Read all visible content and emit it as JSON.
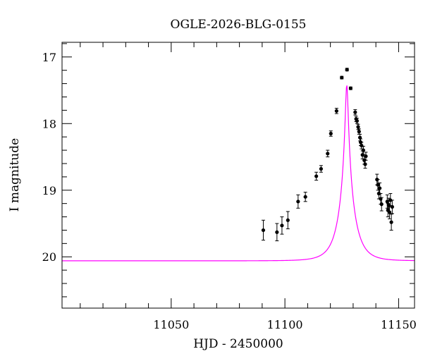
{
  "chart_data": {
    "type": "scatter",
    "title": "OGLE-2026-BLG-0155",
    "xlabel": "HJD - 2450000",
    "ylabel": "I magnitude",
    "xlim": [
      11002,
      11157
    ],
    "ylim": [
      20.77,
      16.78
    ],
    "y_inverted": true,
    "x_ticks": [
      11050,
      11100,
      11150
    ],
    "y_ticks": [
      17,
      18,
      19,
      20
    ],
    "x_minor_step": 10,
    "y_minor_step": 0.2,
    "grid": false,
    "model_color": "#ff00ff",
    "point_color": "#000000",
    "model": {
      "t0": 11127.2,
      "tE": 6.3,
      "u0": 0.0877,
      "baseline_mag": 20.06,
      "name": ""
    },
    "points": [
      {
        "x": 11090.5,
        "y": 19.6,
        "err": 0.15
      },
      {
        "x": 11096.5,
        "y": 19.63,
        "err": 0.13
      },
      {
        "x": 11098.7,
        "y": 19.53,
        "err": 0.13
      },
      {
        "x": 11101.3,
        "y": 19.45,
        "err": 0.13
      },
      {
        "x": 11105.8,
        "y": 19.17,
        "err": 0.1
      },
      {
        "x": 11109.0,
        "y": 19.1,
        "err": 0.07
      },
      {
        "x": 11113.8,
        "y": 18.79,
        "err": 0.06
      },
      {
        "x": 11115.9,
        "y": 18.68,
        "err": 0.05
      },
      {
        "x": 11118.8,
        "y": 18.45,
        "err": 0.05
      },
      {
        "x": 11120.2,
        "y": 18.15,
        "err": 0.04
      },
      {
        "x": 11122.7,
        "y": 17.81,
        "err": 0.04
      },
      {
        "x": 11125.0,
        "y": 17.31,
        "err": 0.02
      },
      {
        "x": 11127.3,
        "y": 17.19,
        "err": 0.02
      },
      {
        "x": 11128.9,
        "y": 17.47,
        "err": 0.02
      },
      {
        "x": 11130.9,
        "y": 17.83,
        "err": 0.04
      },
      {
        "x": 11131.3,
        "y": 17.93,
        "err": 0.04
      },
      {
        "x": 11131.7,
        "y": 17.96,
        "err": 0.04
      },
      {
        "x": 11132.2,
        "y": 18.05,
        "err": 0.04
      },
      {
        "x": 11132.6,
        "y": 18.12,
        "err": 0.04
      },
      {
        "x": 11133.0,
        "y": 18.21,
        "err": 0.05
      },
      {
        "x": 11133.3,
        "y": 18.28,
        "err": 0.05
      },
      {
        "x": 11133.7,
        "y": 18.33,
        "err": 0.05
      },
      {
        "x": 11134.1,
        "y": 18.47,
        "err": 0.06
      },
      {
        "x": 11134.5,
        "y": 18.4,
        "err": 0.06
      },
      {
        "x": 11134.9,
        "y": 18.55,
        "err": 0.06
      },
      {
        "x": 11135.3,
        "y": 18.61,
        "err": 0.06
      },
      {
        "x": 11135.6,
        "y": 18.49,
        "err": 0.06
      },
      {
        "x": 11140.5,
        "y": 18.84,
        "err": 0.08
      },
      {
        "x": 11140.9,
        "y": 18.92,
        "err": 0.08
      },
      {
        "x": 11141.3,
        "y": 19.05,
        "err": 0.08
      },
      {
        "x": 11141.7,
        "y": 18.97,
        "err": 0.08
      },
      {
        "x": 11142.1,
        "y": 19.13,
        "err": 0.08
      },
      {
        "x": 11142.5,
        "y": 19.21,
        "err": 0.1
      },
      {
        "x": 11145.0,
        "y": 19.17,
        "err": 0.1
      },
      {
        "x": 11145.3,
        "y": 19.3,
        "err": 0.1
      },
      {
        "x": 11145.6,
        "y": 19.22,
        "err": 0.1
      },
      {
        "x": 11146.0,
        "y": 19.33,
        "err": 0.1
      },
      {
        "x": 11146.4,
        "y": 19.15,
        "err": 0.1
      },
      {
        "x": 11146.8,
        "y": 19.48,
        "err": 0.12
      },
      {
        "x": 11147.2,
        "y": 19.25,
        "err": 0.1
      }
    ]
  }
}
